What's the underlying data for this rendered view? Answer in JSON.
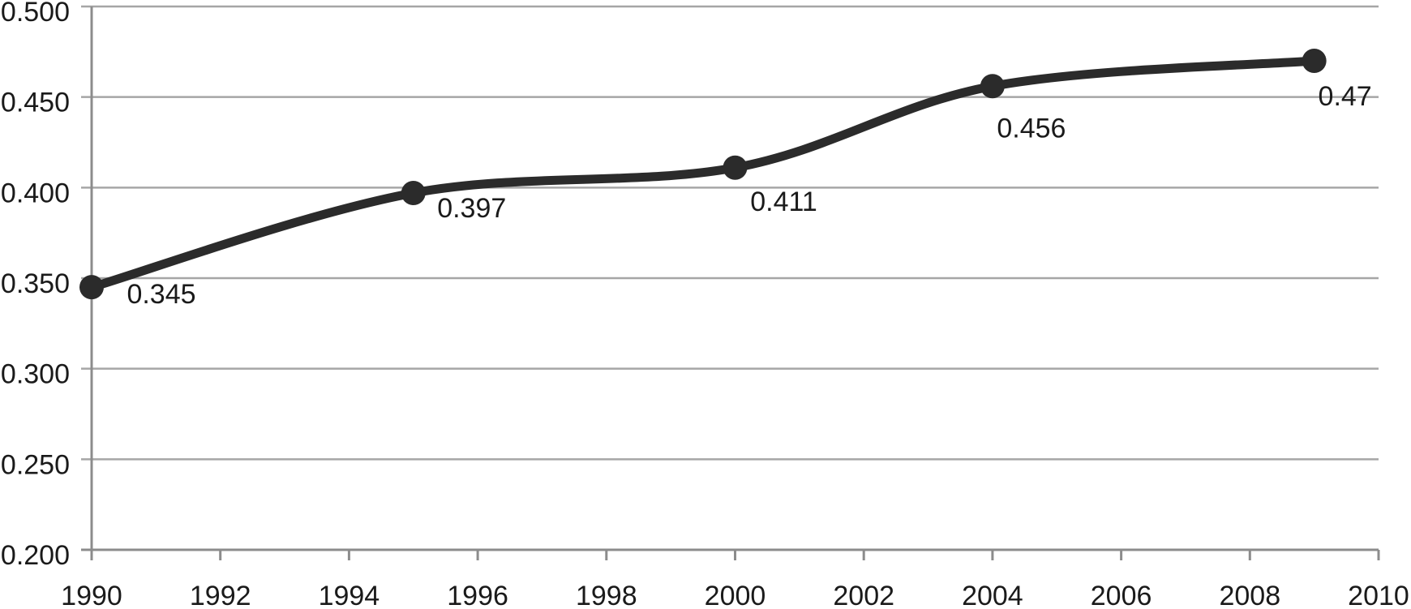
{
  "chart_data": {
    "type": "line",
    "title": "",
    "xlabel": "",
    "ylabel": "",
    "legend": "none",
    "grid": "horizontal",
    "line_style": "smooth",
    "series": [
      {
        "name": "series-1",
        "x": [
          1990,
          1995,
          2000,
          2004,
          2009
        ],
        "values": [
          0.345,
          0.397,
          0.411,
          0.456,
          0.47
        ],
        "point_labels": [
          "0.345",
          "0.397",
          "0.411",
          "0.456",
          "0.47"
        ]
      }
    ],
    "x_axis": {
      "range": [
        1990,
        2010
      ],
      "ticks": [
        1990,
        1992,
        1994,
        1996,
        1998,
        2000,
        2002,
        2004,
        2006,
        2008,
        2010
      ],
      "tick_labels": [
        "1990",
        "1992",
        "1994",
        "1996",
        "1998",
        "2000",
        "2002",
        "2004",
        "2006",
        "2008",
        "2010"
      ]
    },
    "y_axis": {
      "range": [
        0.2,
        0.5
      ],
      "ticks": [
        0.5,
        0.45,
        0.4,
        0.35,
        0.3,
        0.25,
        0.2
      ],
      "tick_labels": [
        "0.500",
        "0.450",
        "0.400",
        "0.350",
        "0.300",
        "0.250",
        "0.200"
      ]
    },
    "colors": {
      "line": "#2b2b2b",
      "marker": "#2b2b2b",
      "gridline": "#a6a6a6",
      "axis": "#8c8c8c",
      "text": "#1a1a1a",
      "background": "#ffffff"
    }
  }
}
